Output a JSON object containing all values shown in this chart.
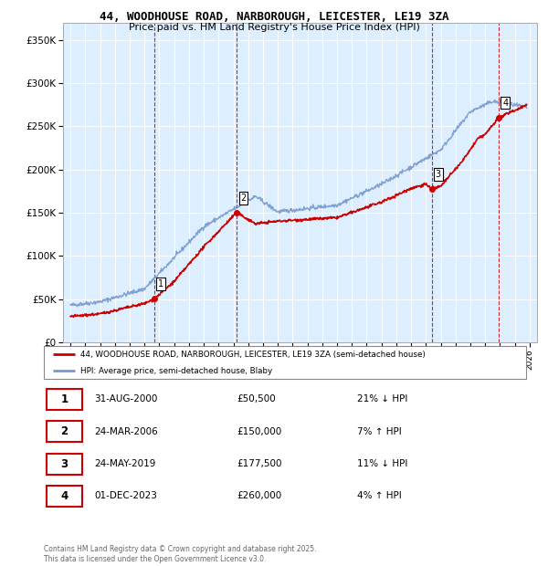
{
  "title_line1": "44, WOODHOUSE ROAD, NARBOROUGH, LEICESTER, LE19 3ZA",
  "title_line2": "Price paid vs. HM Land Registry's House Price Index (HPI)",
  "background_color": "#ffffff",
  "plot_bg_color": "#ddeeff",
  "grid_color": "#ffffff",
  "sale_color": "#cc0000",
  "hpi_color": "#7799cc",
  "vline_color": "#cc0000",
  "sales": [
    {
      "date_num": 2000.667,
      "price": 50500,
      "label": "1"
    },
    {
      "date_num": 2006.233,
      "price": 150000,
      "label": "2"
    },
    {
      "date_num": 2019.389,
      "price": 177500,
      "label": "3"
    },
    {
      "date_num": 2023.917,
      "price": 260000,
      "label": "4"
    }
  ],
  "table_rows": [
    {
      "num": "1",
      "date": "31-AUG-2000",
      "price": "£50,500",
      "hpi": "21% ↓ HPI"
    },
    {
      "num": "2",
      "date": "24-MAR-2006",
      "price": "£150,000",
      "hpi": "7% ↑ HPI"
    },
    {
      "num": "3",
      "date": "24-MAY-2019",
      "price": "£177,500",
      "hpi": "11% ↓ HPI"
    },
    {
      "num": "4",
      "date": "01-DEC-2023",
      "price": "£260,000",
      "hpi": "4% ↑ HPI"
    }
  ],
  "footnote": "Contains HM Land Registry data © Crown copyright and database right 2025.\nThis data is licensed under the Open Government Licence v3.0.",
  "legend_sale_label": "44, WOODHOUSE ROAD, NARBOROUGH, LEICESTER, LE19 3ZA (semi-detached house)",
  "legend_hpi_label": "HPI: Average price, semi-detached house, Blaby",
  "ylim": [
    0,
    370000
  ],
  "xlim": [
    1994.5,
    2026.5
  ],
  "yticks": [
    0,
    50000,
    100000,
    150000,
    200000,
    250000,
    300000,
    350000
  ],
  "ytick_labels": [
    "£0",
    "£50K",
    "£100K",
    "£150K",
    "£200K",
    "£250K",
    "£300K",
    "£350K"
  ],
  "xticks": [
    1995,
    1996,
    1997,
    1998,
    1999,
    2000,
    2001,
    2002,
    2003,
    2004,
    2005,
    2006,
    2007,
    2008,
    2009,
    2010,
    2011,
    2012,
    2013,
    2014,
    2015,
    2016,
    2017,
    2018,
    2019,
    2020,
    2021,
    2022,
    2023,
    2024,
    2025,
    2026
  ]
}
